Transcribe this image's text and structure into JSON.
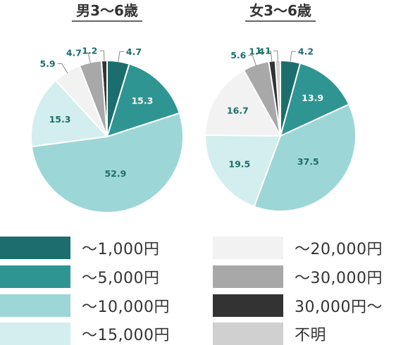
{
  "chart_data": [
    {
      "type": "pie",
      "title": "男3〜6歳",
      "categories": [
        "〜1,000円",
        "〜5,000円",
        "〜10,000円",
        "〜15,000円",
        "〜20,000円",
        "〜30,000円",
        "30,000円〜",
        "不明"
      ],
      "values": [
        4.7,
        15.3,
        52.9,
        15.3,
        5.9,
        4.7,
        1.2,
        0
      ],
      "value_labels": [
        "4.7",
        "15.3",
        "52.9",
        "15.3",
        "5.9",
        "4.7",
        "1.2",
        ""
      ]
    },
    {
      "type": "pie",
      "title": "女3〜6歳",
      "categories": [
        "〜1,000円",
        "〜5,000円",
        "〜10,000円",
        "〜15,000円",
        "〜20,000円",
        "〜30,000円",
        "30,000円〜",
        "不明"
      ],
      "values": [
        4.2,
        13.9,
        37.5,
        19.5,
        16.7,
        5.6,
        1.4,
        1.1
      ],
      "value_labels": [
        "4.2",
        "13.9",
        "37.5",
        "19.5",
        "16.7",
        "5.6",
        "1.4",
        "1.1"
      ]
    }
  ],
  "legend": {
    "placement": "bottom",
    "items": [
      {
        "label": "〜1,000円",
        "color": "#1b6e6b"
      },
      {
        "label": "〜5,000円",
        "color": "#2f9593"
      },
      {
        "label": "〜10,000円",
        "color": "#9dd6d6"
      },
      {
        "label": "〜15,000円",
        "color": "#d3eeee"
      },
      {
        "label": "〜20,000円",
        "color": "#f2f2f2"
      },
      {
        "label": "〜30,000円",
        "color": "#a8a8a8"
      },
      {
        "label": "30,000円〜",
        "color": "#333333"
      },
      {
        "label": "不明",
        "color": "#d0d0d0"
      }
    ]
  }
}
